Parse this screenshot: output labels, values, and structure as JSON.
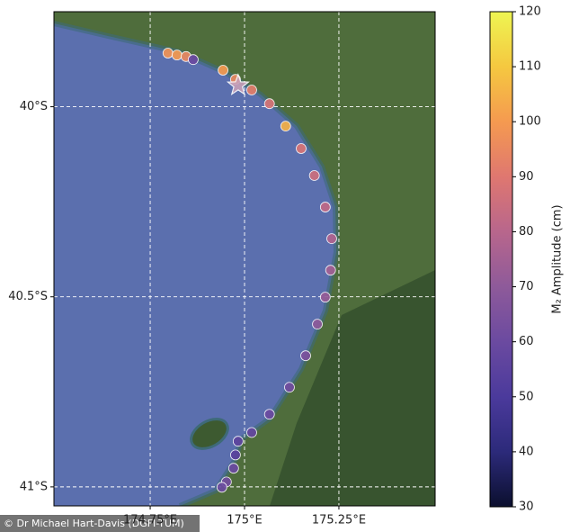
{
  "chart_data": {
    "type": "scatter-map",
    "xlim": [
      174.495,
      175.505
    ],
    "ylim": [
      -41.05,
      -39.75
    ],
    "xticks": [
      {
        "value": 174.75,
        "label": "174.75°E"
      },
      {
        "value": 175,
        "label": "175°E"
      },
      {
        "value": 175.25,
        "label": "175.25°E"
      }
    ],
    "yticks": [
      {
        "value": -40,
        "label": "40°S"
      },
      {
        "value": -40.5,
        "label": "40.5°S"
      },
      {
        "value": -41,
        "label": "41°S"
      }
    ],
    "grid": true,
    "colorbar": {
      "label": "M₂ Amplitude (cm)",
      "lim": [
        30,
        120
      ],
      "ticks": [
        30,
        40,
        50,
        60,
        70,
        80,
        90,
        100,
        110,
        120
      ],
      "colormap": [
        "#0b0f2e",
        "#2c2a7a",
        "#4b3a9c",
        "#6b4aa0",
        "#8e5a9a",
        "#b8668c",
        "#df7770",
        "#f59a50",
        "#f5c840",
        "#eef552"
      ]
    },
    "lon": [
      174.797,
      174.821,
      174.845,
      174.864,
      174.943,
      174.976,
      175.019,
      175.066,
      175.109,
      175.15,
      175.185,
      175.214,
      175.231,
      175.228,
      175.214,
      175.193,
      175.162,
      175.119,
      175.066,
      175.019,
      174.983,
      174.976,
      174.971,
      174.952,
      174.94
    ],
    "lat": [
      -39.859,
      -39.864,
      -39.868,
      -39.876,
      -39.904,
      -39.928,
      -39.956,
      -39.992,
      -40.051,
      -40.11,
      -40.181,
      -40.264,
      -40.347,
      -40.43,
      -40.501,
      -40.572,
      -40.655,
      -40.738,
      -40.809,
      -40.857,
      -40.88,
      -40.916,
      -40.951,
      -40.987,
      -41.001
    ],
    "values": [
      98,
      100,
      95,
      60,
      100,
      95,
      92,
      88,
      105,
      88,
      85,
      82,
      78,
      75,
      72,
      70,
      65,
      62,
      60,
      58,
      56,
      55,
      60,
      62,
      60
    ],
    "star": {
      "lon": 174.983,
      "lat": -39.944
    },
    "credit": "© Dr Michael Hart-Davis (DGFI-TUM)"
  }
}
